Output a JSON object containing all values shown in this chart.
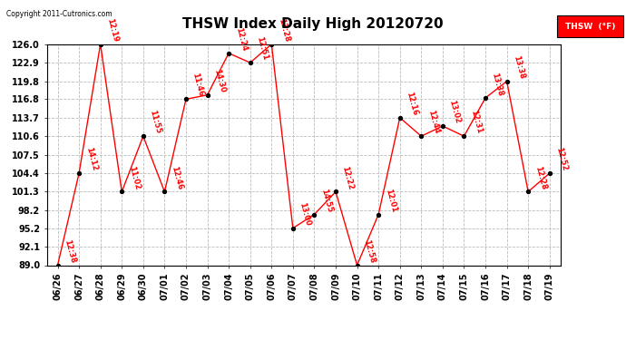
{
  "title": "THSW Index Daily High 20120720",
  "copyright": "Copyright 2011-Cutronics.com",
  "dates": [
    "06/26",
    "06/27",
    "06/28",
    "06/29",
    "06/30",
    "07/01",
    "07/02",
    "07/03",
    "07/04",
    "07/05",
    "07/06",
    "07/07",
    "07/08",
    "07/09",
    "07/10",
    "07/11",
    "07/12",
    "07/13",
    "07/14",
    "07/15",
    "07/16",
    "07/17",
    "07/18",
    "07/19"
  ],
  "values": [
    89.0,
    104.4,
    126.0,
    101.3,
    110.6,
    101.3,
    116.8,
    117.5,
    124.5,
    122.9,
    126.0,
    95.2,
    97.5,
    101.3,
    89.0,
    97.5,
    113.7,
    110.6,
    112.3,
    110.6,
    117.0,
    119.8,
    101.3,
    104.4
  ],
  "times": [
    "12:38",
    "14:12",
    "12:19",
    "11:02",
    "11:55",
    "12:46",
    "11:46",
    "14:30",
    "12:24",
    "12:51",
    "13:28",
    "13:00",
    "14:55",
    "12:22",
    "12:58",
    "12:01",
    "12:16",
    "12:44",
    "13:02",
    "12:31",
    "13:38",
    "13:38",
    "12:28",
    "12:52"
  ],
  "ylim": [
    89.0,
    126.0
  ],
  "yticks": [
    89.0,
    92.1,
    95.2,
    98.2,
    101.3,
    104.4,
    107.5,
    110.6,
    113.7,
    116.8,
    119.8,
    122.9,
    126.0
  ],
  "line_color": "red",
  "dot_color": "black",
  "grid_color": "#bbbbbb",
  "bg_color": "white",
  "title_fontsize": 11,
  "tick_fontsize": 7,
  "legend_bg": "red",
  "legend_text": "THSW  (°F)",
  "legend_text_color": "white",
  "ann_fontsize": 6
}
